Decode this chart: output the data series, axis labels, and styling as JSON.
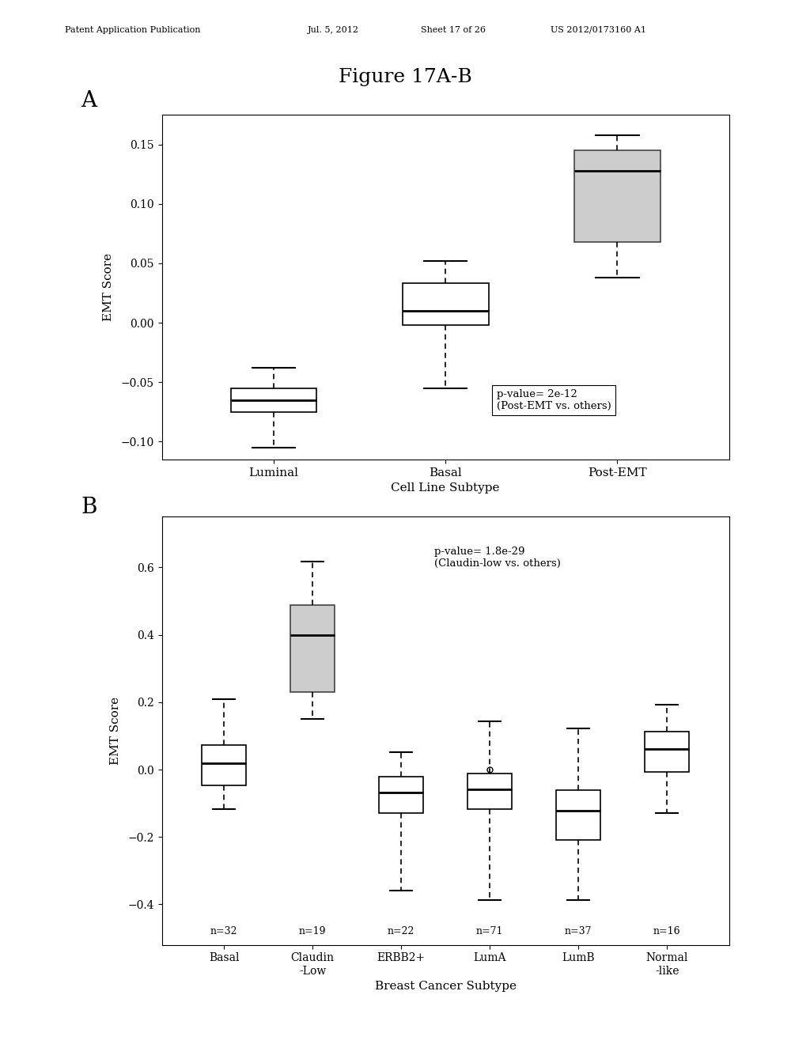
{
  "figure_title": "Figure 17A-B",
  "header_line1": "Patent Application Publication",
  "header_line2": "Jul. 5, 2012",
  "header_line3": "Sheet 17 of 26",
  "header_line4": "US 2012/0173160 A1",
  "plot_A": {
    "label": "A",
    "ylabel": "EMT Score",
    "xlabel": "Cell Line Subtype",
    "ylim": [
      -0.115,
      0.175
    ],
    "yticks": [
      -0.1,
      -0.05,
      0.0,
      0.05,
      0.1,
      0.15
    ],
    "annotation": "p-value= 2e-12\n(Post-EMT vs. others)",
    "categories": [
      "Luminal",
      "Basal",
      "Post-EMT"
    ],
    "boxes": [
      {
        "med": -0.065,
        "q1": -0.075,
        "q3": -0.055,
        "whislo": -0.105,
        "whishi": -0.038,
        "fliers": [],
        "fill": "white"
      },
      {
        "med": 0.01,
        "q1": -0.002,
        "q3": 0.033,
        "whislo": -0.055,
        "whishi": 0.052,
        "fliers": [],
        "fill": "white"
      },
      {
        "med": 0.128,
        "q1": 0.068,
        "q3": 0.145,
        "whislo": 0.038,
        "whishi": 0.158,
        "fliers": [],
        "fill": "gray"
      }
    ]
  },
  "plot_B": {
    "label": "B",
    "ylabel": "EMT Score",
    "xlabel": "Breast Cancer Subtype",
    "ylim": [
      -0.52,
      0.75
    ],
    "yticks": [
      -0.4,
      -0.2,
      0.0,
      0.2,
      0.4,
      0.6
    ],
    "annotation": "p-value= 1.8e-29\n(Claudin-low vs. others)",
    "cat_labels": [
      "Basal",
      "Claudin\n-Low",
      "ERBB2+",
      "LumA",
      "LumB",
      "Normal\n-like"
    ],
    "n_labels": [
      "n=32",
      "n=19",
      "n=22",
      "n=71",
      "n=37",
      "n=16"
    ],
    "boxes": [
      {
        "med": 0.018,
        "q1": -0.048,
        "q3": 0.072,
        "whislo": -0.118,
        "whishi": 0.208,
        "fliers": [],
        "fill": "white"
      },
      {
        "med": 0.4,
        "q1": 0.23,
        "q3": 0.488,
        "whislo": 0.15,
        "whishi": 0.618,
        "fliers": [],
        "fill": "gray"
      },
      {
        "med": -0.068,
        "q1": -0.13,
        "q3": -0.022,
        "whislo": -0.358,
        "whishi": 0.052,
        "fliers": [],
        "fill": "white"
      },
      {
        "med": -0.058,
        "q1": -0.118,
        "q3": -0.012,
        "whislo": -0.388,
        "whishi": 0.142,
        "fliers": [
          0.0
        ],
        "fill": "white"
      },
      {
        "med": -0.122,
        "q1": -0.208,
        "q3": -0.062,
        "whislo": -0.388,
        "whishi": 0.122,
        "fliers": [],
        "fill": "white"
      },
      {
        "med": 0.062,
        "q1": -0.008,
        "q3": 0.112,
        "whislo": -0.128,
        "whishi": 0.192,
        "fliers": [],
        "fill": "white"
      }
    ]
  }
}
